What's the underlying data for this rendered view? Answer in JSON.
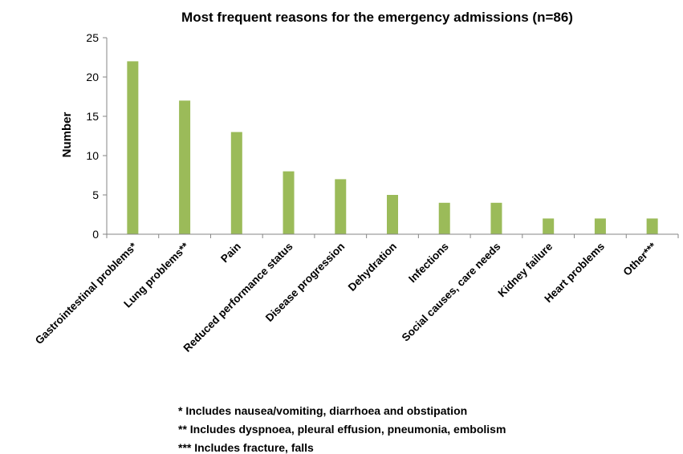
{
  "chart_data": {
    "type": "bar",
    "title": "Most frequent reasons for the emergency admissions (n=86)",
    "xlabel": "",
    "ylabel": "Number",
    "ylim": [
      0,
      25
    ],
    "yticks": [
      0,
      5,
      10,
      15,
      20,
      25
    ],
    "grid": false,
    "legend": "none",
    "bar_color": "#9bbb59",
    "categories": [
      "Gastrointestinal problems*",
      "Lung problems**",
      "Pain",
      "Reduced performance status",
      "Disease progression",
      "Dehydration",
      "Infections",
      "Social causes, care needs",
      "Kidney failure",
      "Heart problems",
      "Other***"
    ],
    "values": [
      22,
      17,
      13,
      8,
      7,
      5,
      4,
      4,
      2,
      2,
      2
    ],
    "footnotes": [
      "* Includes nausea/vomiting, diarrhoea and obstipation",
      "** Includes dyspnoea, pleural effusion, pneumonia, embolism",
      "***  Includes fracture, falls"
    ]
  }
}
